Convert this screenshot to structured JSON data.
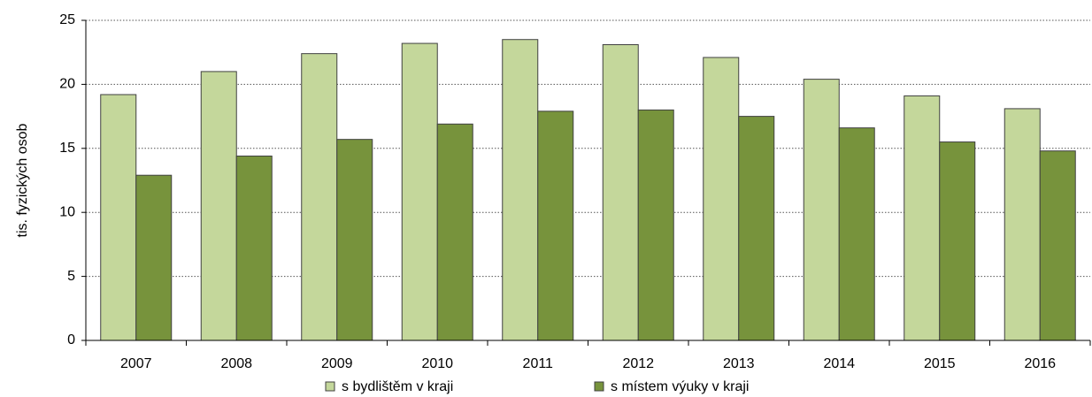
{
  "chart_data": {
    "type": "bar",
    "y_label": "tis. fyzických osob",
    "categories": [
      "2007",
      "2008",
      "2009",
      "2010",
      "2011",
      "2012",
      "2013",
      "2014",
      "2015",
      "2016"
    ],
    "series": [
      {
        "name": "s bydlištěm v kraji",
        "color": "#c4d79b",
        "values": [
          19.2,
          21.0,
          22.4,
          23.2,
          23.5,
          23.1,
          22.1,
          20.4,
          19.1,
          18.1
        ]
      },
      {
        "name": "s místem výuky v kraji",
        "color": "#77933c",
        "values": [
          12.9,
          14.4,
          15.7,
          16.9,
          17.9,
          18.0,
          17.5,
          16.6,
          15.5,
          14.8
        ]
      }
    ],
    "ylim": [
      0,
      25
    ],
    "yticks": [
      0,
      5,
      10,
      15,
      20,
      25
    ],
    "grid": true,
    "legend": "bottom"
  }
}
